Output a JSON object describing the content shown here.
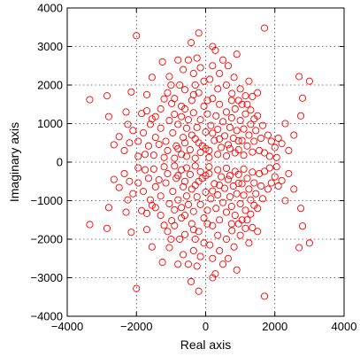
{
  "chart_data": {
    "type": "scatter",
    "title": "",
    "xlabel": "Real axis",
    "ylabel": "Imaginary axis",
    "xlim": [
      -4000,
      4000
    ],
    "ylim": [
      -4000,
      4000
    ],
    "xticks": [
      -4000,
      -2000,
      0,
      2000,
      4000
    ],
    "yticks": [
      -4000,
      -3000,
      -2000,
      -1000,
      0,
      1000,
      2000,
      3000,
      4000
    ],
    "grid": true,
    "marker": "circle-open",
    "color": "#ff0000",
    "symmetry": "conjugate (points mirrored about the real axis)",
    "series": [
      {
        "points": [
          [
            -3350,
            1620
          ],
          [
            -2850,
            1720
          ],
          [
            -2800,
            1180
          ],
          [
            -2250,
            980
          ],
          [
            -2150,
            1820
          ],
          [
            -2100,
            820
          ],
          [
            -1950,
            540
          ],
          [
            -1850,
            1260
          ],
          [
            -1800,
            760
          ],
          [
            -1700,
            1330
          ],
          [
            -1600,
            980
          ],
          [
            -1550,
            1120
          ],
          [
            -1300,
            1380
          ],
          [
            -1450,
            1180
          ],
          [
            -1200,
            1640
          ],
          [
            -1100,
            1800
          ],
          [
            -1050,
            2220
          ],
          [
            -980,
            1520
          ],
          [
            -900,
            1650
          ],
          [
            -800,
            2650
          ],
          [
            -750,
            2000
          ],
          [
            -700,
            1450
          ],
          [
            -600,
            1880
          ],
          [
            -500,
            2650
          ],
          [
            -420,
            3100
          ],
          [
            -350,
            2300
          ],
          [
            -300,
            2000
          ],
          [
            -200,
            3350
          ],
          [
            -150,
            2450
          ],
          [
            -50,
            2100
          ],
          [
            50,
            1600
          ],
          [
            120,
            2150
          ],
          [
            200,
            2500
          ],
          [
            280,
            2900
          ],
          [
            400,
            2300
          ],
          [
            500,
            2650
          ],
          [
            600,
            2000
          ],
          [
            650,
            2500
          ],
          [
            760,
            1780
          ],
          [
            820,
            2200
          ],
          [
            950,
            1600
          ],
          [
            1050,
            1500
          ],
          [
            1150,
            1720
          ],
          [
            1300,
            1350
          ],
          [
            1400,
            1120
          ],
          [
            1500,
            1200
          ],
          [
            1650,
            950
          ],
          [
            1700,
            3480
          ],
          [
            1800,
            700
          ],
          [
            1900,
            540
          ],
          [
            2000,
            380
          ],
          [
            2100,
            620
          ],
          [
            2700,
            2220
          ],
          [
            2800,
            1660
          ],
          [
            3000,
            2100
          ],
          [
            2750,
            1200
          ],
          [
            -2000,
            3280
          ],
          [
            -1550,
            2200
          ],
          [
            -1250,
            2600
          ],
          [
            -1450,
            640
          ],
          [
            -1300,
            880
          ],
          [
            -1150,
            540
          ],
          [
            -1100,
            300
          ],
          [
            -1050,
            1080
          ],
          [
            -950,
            760
          ],
          [
            -900,
            1240
          ],
          [
            -850,
            420
          ],
          [
            -800,
            980
          ],
          [
            -700,
            1180
          ],
          [
            -650,
            640
          ],
          [
            -600,
            1380
          ],
          [
            -550,
            880
          ],
          [
            -500,
            1100
          ],
          [
            -450,
            320
          ],
          [
            -400,
            1600
          ],
          [
            -350,
            1280
          ],
          [
            -300,
            600
          ],
          [
            -250,
            900
          ],
          [
            -200,
            1800
          ],
          [
            -150,
            1100
          ],
          [
            -100,
            420
          ],
          [
            -50,
            1450
          ],
          [
            0,
            780
          ],
          [
            50,
            1250
          ],
          [
            100,
            300
          ],
          [
            150,
            950
          ],
          [
            200,
            1650
          ],
          [
            250,
            560
          ],
          [
            300,
            1200
          ],
          [
            350,
            850
          ],
          [
            400,
            1500
          ],
          [
            450,
            380
          ],
          [
            500,
            1050
          ],
          [
            550,
            680
          ],
          [
            600,
            1300
          ],
          [
            650,
            450
          ],
          [
            700,
            900
          ],
          [
            750,
            1150
          ],
          [
            800,
            620
          ],
          [
            850,
            1380
          ],
          [
            900,
            820
          ],
          [
            950,
            320
          ],
          [
            1000,
            1080
          ],
          [
            1050,
            560
          ],
          [
            1100,
            860
          ],
          [
            1150,
            1250
          ],
          [
            1200,
            420
          ],
          [
            1250,
            700
          ],
          [
            1300,
            980
          ],
          [
            1350,
            260
          ],
          [
            1400,
            540
          ],
          [
            1450,
            820
          ],
          [
            1550,
            300
          ],
          [
            1600,
            620
          ],
          [
            -1650,
            420
          ],
          [
            -1750,
            200
          ],
          [
            -2200,
            500
          ],
          [
            -2350,
            300
          ],
          [
            -1950,
            150
          ],
          [
            -1500,
            180
          ],
          [
            -1350,
            460
          ],
          [
            1700,
            240
          ],
          [
            1850,
            150
          ],
          [
            2050,
            120
          ],
          [
            2200,
            480
          ],
          [
            -700,
            200
          ],
          [
            -550,
            150
          ],
          [
            -300,
            100
          ],
          [
            -150,
            250
          ],
          [
            100,
            120
          ],
          [
            350,
            200
          ],
          [
            600,
            160
          ],
          [
            850,
            240
          ],
          [
            1100,
            180
          ],
          [
            -900,
            100
          ],
          [
            -1200,
            120
          ],
          [
            -250,
            2700
          ],
          [
            200,
            3000
          ],
          [
            -650,
            2400
          ],
          [
            900,
            2800
          ],
          [
            1250,
            2100
          ],
          [
            1500,
            1800
          ],
          [
            -1700,
            1750
          ],
          [
            -2300,
            1300
          ],
          [
            2300,
            1000
          ],
          [
            2550,
            700
          ],
          [
            -2500,
            660
          ],
          [
            -2650,
            450
          ],
          [
            2400,
            300
          ],
          [
            -1000,
            2000
          ],
          [
            -350,
            1750
          ],
          [
            350,
            1900
          ],
          [
            750,
            1600
          ],
          [
            1000,
            1900
          ],
          [
            -800,
            350
          ],
          [
            -600,
            500
          ],
          [
            -400,
            700
          ],
          [
            -200,
            500
          ],
          [
            0,
            350
          ],
          [
            200,
            750
          ],
          [
            400,
            600
          ],
          [
            700,
            350
          ],
          [
            950,
            550
          ],
          [
            1200,
            1500
          ],
          [
            1350,
            1700
          ]
        ]
      }
    ]
  }
}
